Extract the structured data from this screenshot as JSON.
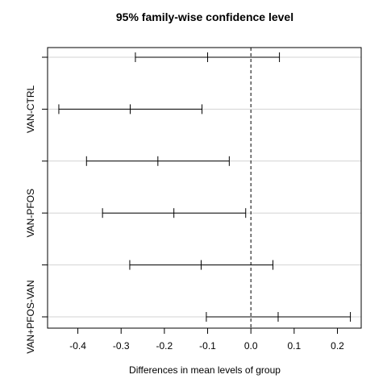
{
  "chart_data": {
    "type": "interval",
    "title": "95% family-wise confidence level",
    "xlabel": "Differences in mean levels of group",
    "ylabel": "",
    "xlim": [
      -0.47,
      0.255
    ],
    "xticks": [
      -0.4,
      -0.3,
      -0.2,
      -0.1,
      0.0,
      0.1,
      0.2
    ],
    "xtick_labels": [
      "-0.4",
      "-0.3",
      "-0.2",
      "-0.1",
      "0.0",
      "0.1",
      "0.2"
    ],
    "reference_line": {
      "x": 0,
      "style": "dashed"
    },
    "grid": "horizontal",
    "comparisons": [
      {
        "label": "",
        "lwr": -0.267,
        "estimate": -0.1,
        "upr": 0.066
      },
      {
        "label": "VAN-CTRL",
        "lwr": -0.444,
        "estimate": -0.279,
        "upr": -0.113
      },
      {
        "label": "",
        "lwr": -0.38,
        "estimate": -0.215,
        "upr": -0.05
      },
      {
        "label": "VAN-PFOS",
        "lwr": -0.343,
        "estimate": -0.178,
        "upr": -0.012
      },
      {
        "label": "",
        "lwr": -0.28,
        "estimate": -0.115,
        "upr": 0.051
      },
      {
        "label": "VAN+PFOS-VAN",
        "lwr": -0.103,
        "estimate": 0.063,
        "upr": 0.23
      }
    ]
  }
}
